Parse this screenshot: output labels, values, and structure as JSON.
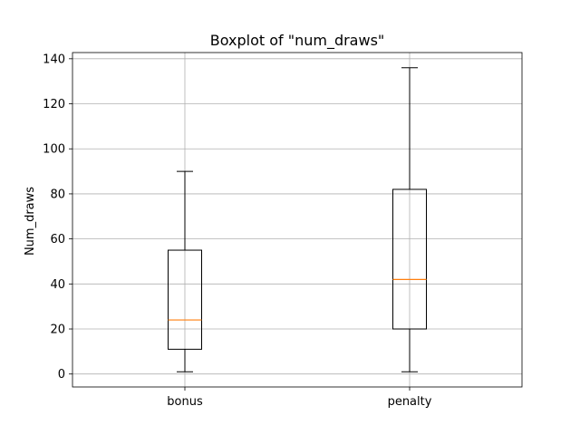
{
  "chart_data": {
    "type": "box",
    "title": "Boxplot of \"num_draws\"",
    "xlabel": "",
    "ylabel": "Num_draws",
    "categories": [
      "bonus",
      "penalty"
    ],
    "boxes": [
      {
        "category": "bonus",
        "whisker_low": 1,
        "q1": 11,
        "median": 24,
        "q3": 55,
        "whisker_high": 90
      },
      {
        "category": "penalty",
        "whisker_low": 1,
        "q1": 20,
        "median": 42,
        "q3": 82,
        "whisker_high": 136
      }
    ],
    "ylim": [
      -5.75,
      142.75
    ],
    "yticks": [
      0,
      20,
      40,
      60,
      80,
      100,
      120,
      140
    ],
    "grid": true,
    "colors": {
      "median": "#ff7f0e",
      "box": "#000000",
      "grid": "#b0b0b0"
    }
  }
}
